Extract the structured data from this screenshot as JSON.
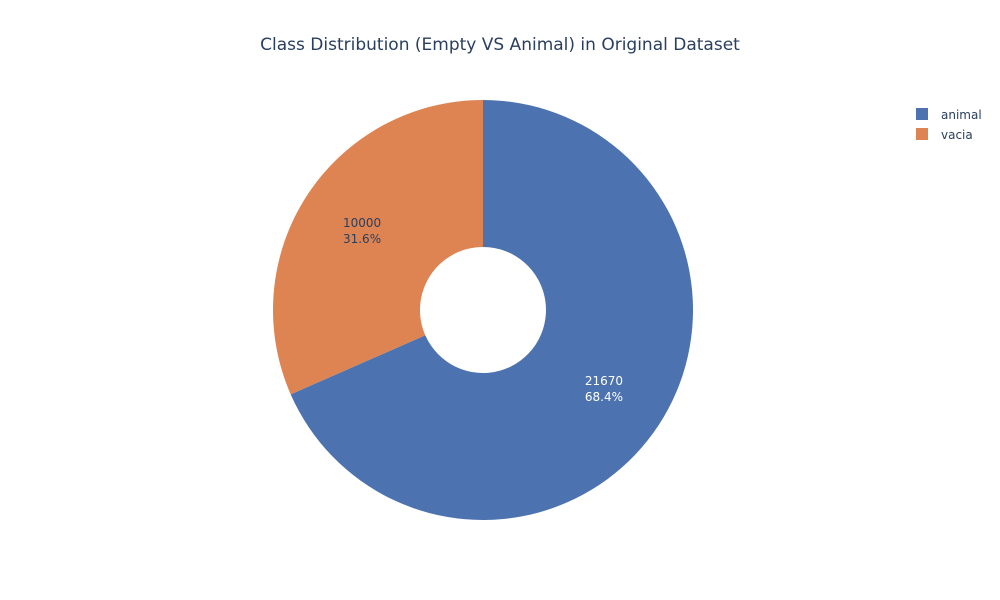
{
  "chart_data": {
    "type": "pie",
    "title": "Class Distribution (Empty VS Animal) in Original Dataset",
    "hole": 0.3,
    "slices": [
      {
        "label": "animal",
        "value": 21670,
        "percent": "68.4%",
        "color": "#4c72b0",
        "text_color": "#ffffff"
      },
      {
        "label": "vacia",
        "value": 10000,
        "percent": "31.6%",
        "color": "#dd8452",
        "text_color": "#2a3f5f"
      }
    ],
    "legend": {
      "position": "top-right",
      "items": [
        "animal",
        "vacia"
      ]
    }
  }
}
